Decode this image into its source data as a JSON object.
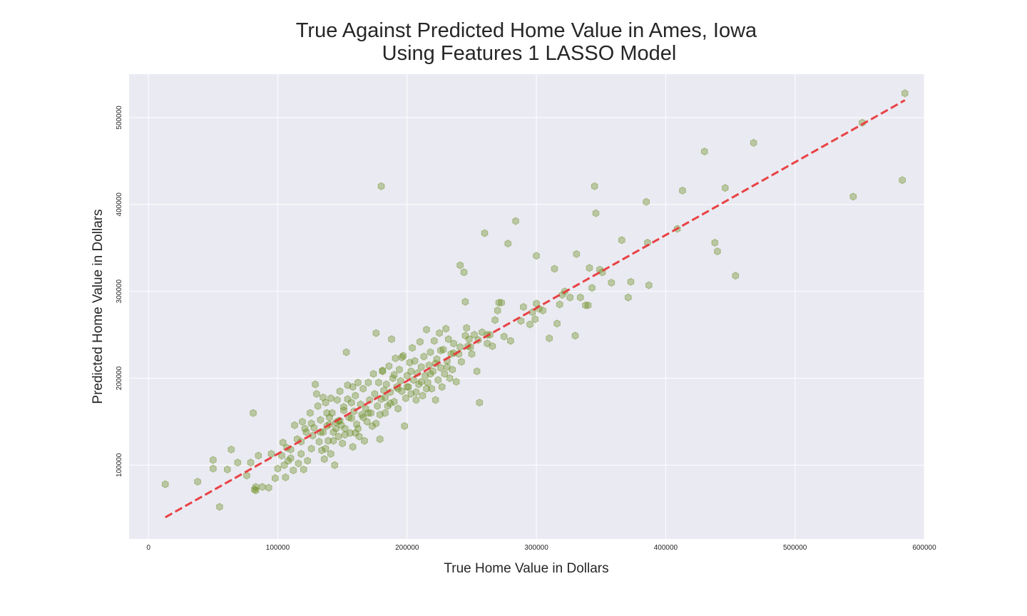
{
  "chart_data": {
    "type": "scatter",
    "title": [
      "True Against Predicted Home Value in Ames, Iowa",
      "Using Features 1 LASSO Model"
    ],
    "xlabel": "True Home Value in Dollars",
    "ylabel": "Predicted Home Value in Dollars",
    "xlim": [
      -15000,
      600000
    ],
    "ylim": [
      15000,
      550000
    ],
    "xticks": [
      0,
      100000,
      200000,
      300000,
      400000,
      500000,
      600000
    ],
    "xtick_labels": [
      "0",
      "100000",
      "200000",
      "300000",
      "400000",
      "500000",
      "600000"
    ],
    "yticks": [
      100000,
      200000,
      300000,
      400000,
      500000
    ],
    "ytick_labels": [
      "100000",
      "200000",
      "300000",
      "400000",
      "500000"
    ],
    "grid": true,
    "marker": "hexagon",
    "point_color": "#6b8e23",
    "line_color": "#e8393b",
    "reference_line": {
      "style": "dashed",
      "from": [
        13000,
        40000
      ],
      "to": [
        585000,
        520000
      ]
    },
    "points": [
      [
        13000,
        78000
      ],
      [
        38000,
        81000
      ],
      [
        50000,
        106000
      ],
      [
        50000,
        96000
      ],
      [
        55000,
        52000
      ],
      [
        61000,
        95000
      ],
      [
        64000,
        118000
      ],
      [
        69000,
        103000
      ],
      [
        81000,
        160000
      ],
      [
        82000,
        72000
      ],
      [
        83000,
        71000
      ],
      [
        83000,
        75000
      ],
      [
        85000,
        111000
      ],
      [
        88000,
        75000
      ],
      [
        93000,
        74000
      ],
      [
        79000,
        103000
      ],
      [
        76000,
        88000
      ],
      [
        95000,
        113000
      ],
      [
        98000,
        85000
      ],
      [
        100000,
        96000
      ],
      [
        103000,
        111000
      ],
      [
        104000,
        126000
      ],
      [
        105000,
        100000
      ],
      [
        106000,
        86000
      ],
      [
        107000,
        120000
      ],
      [
        110000,
        108000
      ],
      [
        112000,
        94000
      ],
      [
        115000,
        130000
      ],
      [
        118000,
        113000
      ],
      [
        120000,
        95000
      ],
      [
        121000,
        142000
      ],
      [
        123000,
        105000
      ],
      [
        125000,
        160000
      ],
      [
        126000,
        119000
      ],
      [
        127000,
        134000
      ],
      [
        128000,
        143000
      ],
      [
        130000,
        182000
      ],
      [
        131000,
        168000
      ],
      [
        132000,
        127000
      ],
      [
        133000,
        152000
      ],
      [
        134000,
        117000
      ],
      [
        135000,
        138000
      ],
      [
        136000,
        107000
      ],
      [
        137000,
        172000
      ],
      [
        138000,
        145000
      ],
      [
        139000,
        128000
      ],
      [
        140000,
        155000
      ],
      [
        141000,
        113000
      ],
      [
        142000,
        160000
      ],
      [
        143000,
        138000
      ],
      [
        144000,
        100000
      ],
      [
        145000,
        149000
      ],
      [
        146000,
        175000
      ],
      [
        147000,
        133000
      ],
      [
        148000,
        185000
      ],
      [
        149000,
        146000
      ],
      [
        150000,
        125000
      ],
      [
        151000,
        163000
      ],
      [
        152000,
        142000
      ],
      [
        153000,
        230000
      ],
      [
        154000,
        192000
      ],
      [
        155000,
        155000
      ],
      [
        156000,
        137000
      ],
      [
        157000,
        172000
      ],
      [
        158000,
        121000
      ],
      [
        159000,
        162000
      ],
      [
        160000,
        180000
      ],
      [
        161000,
        147000
      ],
      [
        162000,
        195000
      ],
      [
        163000,
        133000
      ],
      [
        164000,
        170000
      ],
      [
        165000,
        158000
      ],
      [
        166000,
        188000
      ],
      [
        167000,
        128000
      ],
      [
        168000,
        165000
      ],
      [
        169000,
        150000
      ],
      [
        170000,
        195000
      ],
      [
        171000,
        175000
      ],
      [
        172000,
        160000
      ],
      [
        173000,
        145000
      ],
      [
        174000,
        205000
      ],
      [
        175000,
        182000
      ],
      [
        176000,
        252000
      ],
      [
        177000,
        168000
      ],
      [
        178000,
        195000
      ],
      [
        179000,
        130000
      ],
      [
        180000,
        176000
      ],
      [
        181000,
        208000
      ],
      [
        182000,
        186000
      ],
      [
        183000,
        160000
      ],
      [
        184000,
        193000
      ],
      [
        185000,
        168000
      ],
      [
        186000,
        214000
      ],
      [
        187000,
        184000
      ],
      [
        188000,
        245000
      ],
      [
        189000,
        200000
      ],
      [
        190000,
        173000
      ],
      [
        191000,
        223000
      ],
      [
        192000,
        190000
      ],
      [
        193000,
        165000
      ],
      [
        194000,
        210000
      ],
      [
        195000,
        197000
      ],
      [
        196000,
        185000
      ],
      [
        197000,
        226000
      ],
      [
        198000,
        145000
      ],
      [
        199000,
        177000
      ],
      [
        200000,
        203000
      ],
      [
        201000,
        190000
      ],
      [
        202000,
        218000
      ],
      [
        203000,
        182000
      ],
      [
        204000,
        235000
      ],
      [
        205000,
        198000
      ],
      [
        206000,
        220000
      ],
      [
        207000,
        175000
      ],
      [
        208000,
        206000
      ],
      [
        209000,
        193000
      ],
      [
        210000,
        242000
      ],
      [
        211000,
        213000
      ],
      [
        212000,
        180000
      ],
      [
        213000,
        225000
      ],
      [
        214000,
        203000
      ],
      [
        215000,
        256000
      ],
      [
        216000,
        195000
      ],
      [
        217000,
        215000
      ],
      [
        218000,
        230000
      ],
      [
        219000,
        188000
      ],
      [
        220000,
        208000
      ],
      [
        221000,
        243000
      ],
      [
        222000,
        175000
      ],
      [
        223000,
        222000
      ],
      [
        224000,
        198000
      ],
      [
        225000,
        252000
      ],
      [
        226000,
        212000
      ],
      [
        227000,
        190000
      ],
      [
        228000,
        233000
      ],
      [
        229000,
        205000
      ],
      [
        230000,
        257000
      ],
      [
        231000,
        220000
      ],
      [
        232000,
        245000
      ],
      [
        233000,
        200000
      ],
      [
        234000,
        228000
      ],
      [
        235000,
        210000
      ],
      [
        236000,
        240000
      ],
      [
        238000,
        196000
      ],
      [
        240000,
        228000
      ],
      [
        241000,
        330000
      ],
      [
        242000,
        219000
      ],
      [
        244000,
        322000
      ],
      [
        245000,
        288000
      ],
      [
        246000,
        258000
      ],
      [
        247000,
        237000
      ],
      [
        248000,
        245000
      ],
      [
        250000,
        228000
      ],
      [
        252000,
        250000
      ],
      [
        254000,
        208000
      ],
      [
        256000,
        172000
      ],
      [
        258000,
        253000
      ],
      [
        260000,
        367000
      ],
      [
        262000,
        240000
      ],
      [
        264000,
        250000
      ],
      [
        266000,
        237000
      ],
      [
        268000,
        267000
      ],
      [
        270000,
        278000
      ],
      [
        271000,
        287000
      ],
      [
        275000,
        248000
      ],
      [
        278000,
        355000
      ],
      [
        280000,
        243000
      ],
      [
        284000,
        381000
      ],
      [
        288000,
        266000
      ],
      [
        290000,
        282000
      ],
      [
        295000,
        262000
      ],
      [
        297000,
        276000
      ],
      [
        299000,
        268000
      ],
      [
        300000,
        286000
      ],
      [
        300000,
        341000
      ],
      [
        302000,
        280000
      ],
      [
        305000,
        278000
      ],
      [
        310000,
        246000
      ],
      [
        314000,
        326000
      ],
      [
        316000,
        263000
      ],
      [
        318000,
        285000
      ],
      [
        320000,
        296000
      ],
      [
        322000,
        300000
      ],
      [
        326000,
        293000
      ],
      [
        330000,
        249000
      ],
      [
        331000,
        343000
      ],
      [
        334000,
        293000
      ],
      [
        338000,
        284000
      ],
      [
        340000,
        284000
      ],
      [
        341000,
        327000
      ],
      [
        343000,
        304000
      ],
      [
        345000,
        421000
      ],
      [
        346000,
        390000
      ],
      [
        349000,
        325000
      ],
      [
        351000,
        322000
      ],
      [
        358000,
        310000
      ],
      [
        366000,
        359000
      ],
      [
        371000,
        293000
      ],
      [
        373000,
        311000
      ],
      [
        385000,
        403000
      ],
      [
        386000,
        356000
      ],
      [
        387000,
        307000
      ],
      [
        409000,
        372000
      ],
      [
        413000,
        416000
      ],
      [
        430000,
        461000
      ],
      [
        438000,
        356000
      ],
      [
        440000,
        346000
      ],
      [
        446000,
        419000
      ],
      [
        454000,
        318000
      ],
      [
        468000,
        471000
      ],
      [
        180000,
        421000
      ],
      [
        181000,
        209000
      ],
      [
        158000,
        190000
      ],
      [
        135000,
        178000
      ],
      [
        160000,
        137000
      ],
      [
        145000,
        142000
      ],
      [
        148000,
        151000
      ],
      [
        152000,
        135000
      ],
      [
        140000,
        147000
      ],
      [
        138000,
        160000
      ],
      [
        143000,
        128000
      ],
      [
        126000,
        148000
      ],
      [
        122000,
        138000
      ],
      [
        118000,
        127000
      ],
      [
        116000,
        102000
      ],
      [
        110000,
        118000
      ],
      [
        108000,
        105000
      ],
      [
        113000,
        146000
      ],
      [
        119000,
        150000
      ],
      [
        129000,
        193000
      ],
      [
        133000,
        138000
      ],
      [
        137000,
        119000
      ],
      [
        141000,
        177000
      ],
      [
        147000,
        151000
      ],
      [
        151000,
        167000
      ],
      [
        154000,
        176000
      ],
      [
        157000,
        154000
      ],
      [
        162000,
        142000
      ],
      [
        166000,
        155000
      ],
      [
        170000,
        160000
      ],
      [
        176000,
        148000
      ],
      [
        179000,
        158000
      ],
      [
        183000,
        178000
      ],
      [
        187000,
        171000
      ],
      [
        190000,
        204000
      ],
      [
        193000,
        188000
      ],
      [
        196000,
        224000
      ],
      [
        200000,
        190000
      ],
      [
        203000,
        208000
      ],
      [
        207000,
        184000
      ],
      [
        211000,
        196000
      ],
      [
        215000,
        188000
      ],
      [
        218000,
        205000
      ],
      [
        222000,
        217000
      ],
      [
        226000,
        232000
      ],
      [
        231000,
        213000
      ],
      [
        236000,
        229000
      ],
      [
        241000,
        236000
      ],
      [
        245000,
        249000
      ],
      [
        249000,
        236000
      ],
      [
        255000,
        244000
      ],
      [
        262000,
        250000
      ],
      [
        273000,
        287000
      ],
      [
        545000,
        409000
      ],
      [
        552000,
        494000
      ],
      [
        583000,
        428000
      ],
      [
        585000,
        528000
      ]
    ]
  }
}
